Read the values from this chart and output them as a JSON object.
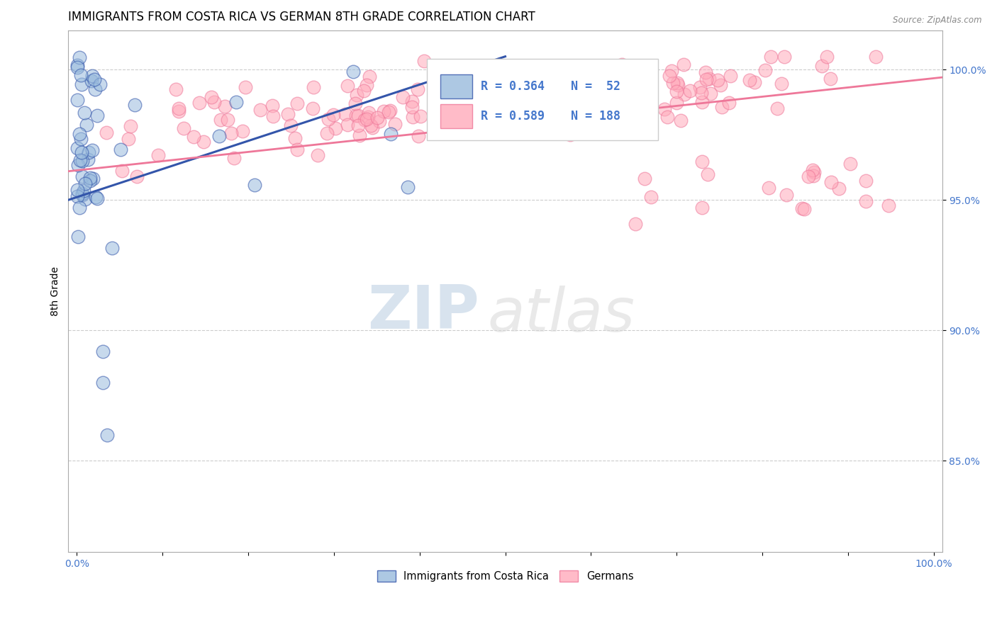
{
  "title": "IMMIGRANTS FROM COSTA RICA VS GERMAN 8TH GRADE CORRELATION CHART",
  "source": "Source: ZipAtlas.com",
  "ylabel": "8th Grade",
  "ytick_labels": [
    "85.0%",
    "90.0%",
    "95.0%",
    "100.0%"
  ],
  "ytick_values": [
    0.85,
    0.9,
    0.95,
    1.0
  ],
  "ylim": [
    0.815,
    1.015
  ],
  "xlim": [
    -0.01,
    1.01
  ],
  "legend_r_blue": "R = 0.364",
  "legend_n_blue": "N =  52",
  "legend_r_pink": "R = 0.589",
  "legend_n_pink": "N = 188",
  "color_blue": "#99BBDD",
  "color_pink": "#FFAABB",
  "color_trend_blue": "#3355AA",
  "color_trend_pink": "#EE7799",
  "watermark_zip": "ZIP",
  "watermark_atlas": "atlas",
  "background_color": "#FFFFFF",
  "grid_color": "#CCCCCC",
  "axis_label_color": "#4477CC",
  "title_fontsize": 12,
  "label_fontsize": 10,
  "tick_fontsize": 10
}
